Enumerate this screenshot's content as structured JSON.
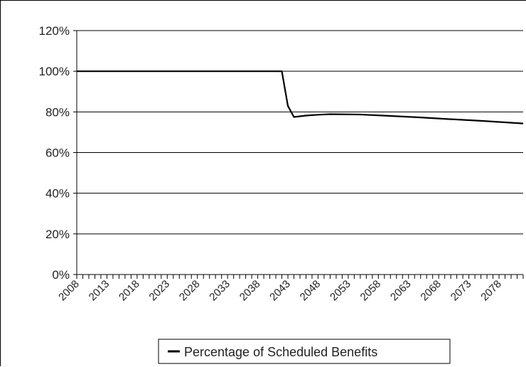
{
  "chart_data": {
    "type": "line",
    "title": "",
    "xlabel": "",
    "ylabel": "",
    "ylim": [
      0,
      120
    ],
    "yticks": [
      0,
      20,
      40,
      60,
      80,
      100,
      120
    ],
    "ytick_labels": [
      "0%",
      "20%",
      "40%",
      "60%",
      "80%",
      "100%",
      "120%"
    ],
    "xlim": [
      2008,
      2082
    ],
    "xticks": [
      2008,
      2013,
      2018,
      2023,
      2028,
      2033,
      2038,
      2043,
      2048,
      2053,
      2058,
      2063,
      2068,
      2073,
      2078
    ],
    "xtick_labels": [
      "2008",
      "2013",
      "2018",
      "2023",
      "2028",
      "2033",
      "2038",
      "2043",
      "2048",
      "2053",
      "2058",
      "2063",
      "2068",
      "2073",
      "2078"
    ],
    "grid": true,
    "legend_position": "bottom",
    "series": [
      {
        "name": "Percentage of Scheduled Benefits",
        "color": "#000000",
        "points": [
          [
            2008,
            100
          ],
          [
            2039,
            100
          ],
          [
            2040,
            100
          ],
          [
            2041,
            100
          ],
          [
            2042,
            100
          ],
          [
            2043,
            83
          ],
          [
            2044,
            77.5
          ],
          [
            2046,
            78.2
          ],
          [
            2048,
            78.6
          ],
          [
            2050,
            78.9
          ],
          [
            2055,
            78.7
          ],
          [
            2060,
            78
          ],
          [
            2065,
            77.3
          ],
          [
            2070,
            76.4
          ],
          [
            2075,
            75.6
          ],
          [
            2082,
            74.3
          ]
        ]
      }
    ]
  }
}
